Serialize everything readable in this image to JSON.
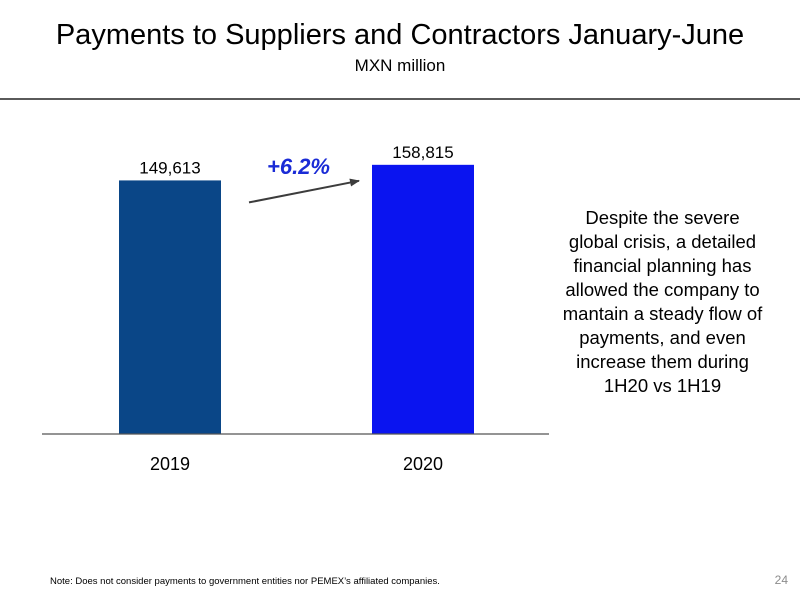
{
  "slide": {
    "title": "Payments to Suppliers and Contractors January-June",
    "subtitle": "MXN million",
    "note": "Despite the severe global crisis, a detailed financial planning has allowed the company to mantain a steady flow of payments, and even increase them during 1H20 vs 1H19",
    "footnote": "Note: Does not consider payments to government entities nor PEMEX’s affiliated companies.",
    "page_number": "24"
  },
  "chart_data": {
    "type": "bar",
    "categories": [
      "2019",
      "2020"
    ],
    "values": [
      149613,
      158815
    ],
    "data_labels": [
      "149,613",
      "158,815"
    ],
    "bar_colors": [
      "#0a4687",
      "#0a14f0"
    ],
    "growth_label": "+6.2%",
    "growth_color": "#1a2bd6",
    "arrow_color": "#3c3c3c",
    "ylim": [
      0,
      177000
    ],
    "grid": false,
    "title": "",
    "xlabel": "",
    "ylabel": ""
  }
}
